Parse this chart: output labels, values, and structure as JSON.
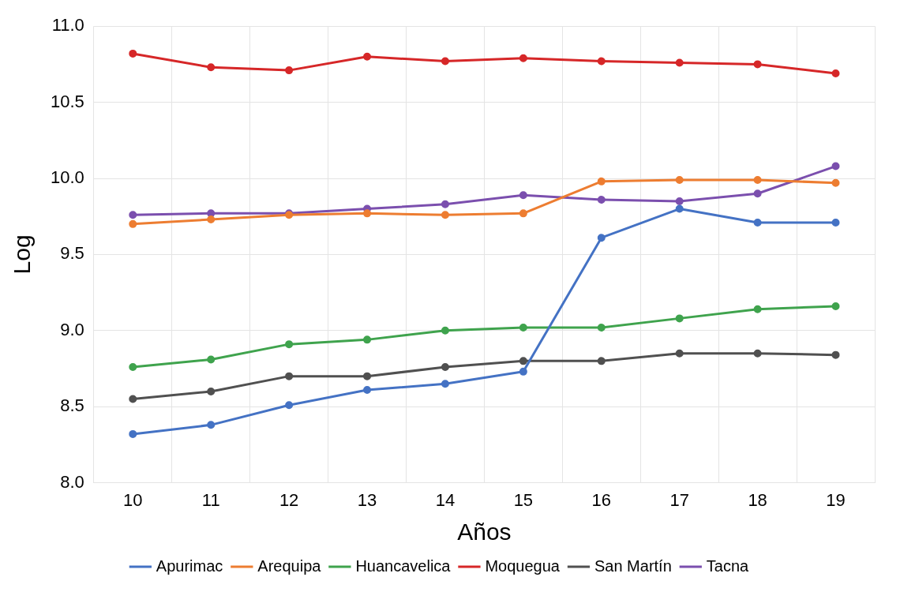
{
  "chart_data": {
    "type": "line",
    "xlabel": "Años",
    "ylabel": "Log",
    "categories": [
      "10",
      "11",
      "12",
      "13",
      "14",
      "15",
      "16",
      "17",
      "18",
      "19"
    ],
    "ylim": [
      8,
      11
    ],
    "yticks": [
      {
        "value": 8,
        "label": "8.0"
      },
      {
        "value": 8.5,
        "label": "8.5"
      },
      {
        "value": 9,
        "label": "9.0"
      },
      {
        "value": 9.5,
        "label": "9.5"
      },
      {
        "value": 10,
        "label": "10.0"
      },
      {
        "value": 10.5,
        "label": "10.5"
      },
      {
        "value": 11,
        "label": "11.0"
      }
    ],
    "grid": true,
    "legend": "bottom",
    "marker": "circle",
    "line_style": "solid",
    "series": [
      {
        "name": "Apurimac",
        "color": "#4472c4",
        "values": [
          8.32,
          8.38,
          8.51,
          8.61,
          8.65,
          8.73,
          9.61,
          9.8,
          9.71,
          9.71
        ]
      },
      {
        "name": "Arequipa",
        "color": "#ed7d31",
        "values": [
          9.7,
          9.73,
          9.76,
          9.77,
          9.76,
          9.77,
          9.98,
          9.99,
          9.99,
          9.97
        ]
      },
      {
        "name": "Huancavelica",
        "color": "#3fa34d",
        "values": [
          8.76,
          8.81,
          8.91,
          8.94,
          9.0,
          9.02,
          9.02,
          9.08,
          9.14,
          9.16
        ]
      },
      {
        "name": "Moquegua",
        "color": "#d62728",
        "values": [
          10.82,
          10.73,
          10.71,
          10.8,
          10.77,
          10.79,
          10.77,
          10.76,
          10.75,
          10.69
        ]
      },
      {
        "name": "San Martín",
        "color": "#505050",
        "values": [
          8.55,
          8.6,
          8.7,
          8.7,
          8.76,
          8.8,
          8.8,
          8.85,
          8.85,
          8.84
        ]
      },
      {
        "name": "Tacna",
        "color": "#7b4fae",
        "values": [
          9.76,
          9.77,
          9.77,
          9.8,
          9.83,
          9.89,
          9.86,
          9.85,
          9.9,
          10.08
        ]
      }
    ]
  }
}
